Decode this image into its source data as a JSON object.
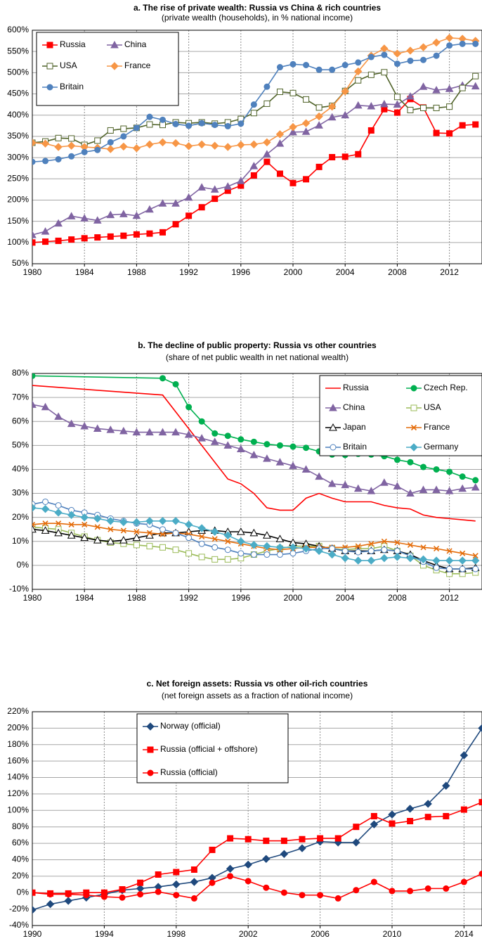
{
  "chart_data": [
    {
      "type": "line",
      "title": "a. The rise of private wealth: Russia vs China & rich countries",
      "subtitle": "(private wealth (households), in % national income)",
      "x": [
        1980,
        1981,
        1982,
        1983,
        1984,
        1985,
        1986,
        1987,
        1988,
        1989,
        1990,
        1991,
        1992,
        1993,
        1994,
        1995,
        1996,
        1997,
        1998,
        1999,
        2000,
        2001,
        2002,
        2003,
        2004,
        2005,
        2006,
        2007,
        2008,
        2009,
        2010,
        2011,
        2012,
        2013,
        2014
      ],
      "xlim": [
        1980,
        2014.5
      ],
      "xticks": [
        1980,
        1984,
        1988,
        1992,
        1996,
        2000,
        2004,
        2008,
        2012
      ],
      "ylim": [
        50,
        600
      ],
      "yticks": [
        {
          "value": 50,
          "label": "50%"
        },
        {
          "value": 100,
          "label": "100%"
        },
        {
          "value": 150,
          "label": "150%"
        },
        {
          "value": 200,
          "label": "200%"
        },
        {
          "value": 250,
          "label": "250%"
        },
        {
          "value": 300,
          "label": "300%"
        },
        {
          "value": 350,
          "label": "350%"
        },
        {
          "value": 400,
          "label": "400%"
        },
        {
          "value": 450,
          "label": "450%"
        },
        {
          "value": 500,
          "label": "500%"
        },
        {
          "value": 550,
          "label": "550%"
        },
        {
          "value": 600,
          "label": "600%"
        }
      ],
      "grid": true,
      "legend": "upper left",
      "legend_columns": 2,
      "series": [
        {
          "name": "Russia",
          "color": "#ff0000",
          "marker": "square",
          "values": [
            100,
            102,
            104,
            107,
            110,
            112,
            114,
            116,
            119,
            121,
            124,
            143,
            163,
            183,
            203,
            222,
            234,
            258,
            290,
            262,
            240,
            249,
            278,
            301,
            302,
            308,
            364,
            414,
            406,
            438,
            418,
            358,
            357,
            376,
            378
          ]
        },
        {
          "name": "China",
          "color": "#8064a2",
          "marker": "triangle",
          "values": [
            118,
            126,
            145,
            162,
            157,
            152,
            165,
            167,
            163,
            178,
            192,
            192,
            206,
            230,
            225,
            232,
            245,
            280,
            308,
            333,
            360,
            361,
            376,
            395,
            400,
            423,
            421,
            426,
            425,
            444,
            467,
            459,
            462,
            470,
            468
          ]
        },
        {
          "name": "USA",
          "color": "#4f6228",
          "marker": "square-open",
          "values": [
            335,
            338,
            346,
            345,
            330,
            340,
            364,
            368,
            370,
            378,
            377,
            383,
            381,
            383,
            380,
            383,
            391,
            405,
            427,
            455,
            452,
            437,
            418,
            422,
            457,
            482,
            495,
            501,
            443,
            412,
            417,
            417,
            420,
            464,
            492
          ]
        },
        {
          "name": "France",
          "color": "#f79646",
          "marker": "diamond",
          "values": [
            335,
            333,
            325,
            328,
            325,
            323,
            320,
            326,
            322,
            331,
            336,
            334,
            327,
            331,
            328,
            325,
            330,
            331,
            336,
            355,
            372,
            381,
            397,
            420,
            456,
            503,
            540,
            557,
            545,
            552,
            560,
            571,
            582,
            580,
            575
          ]
        },
        {
          "name": "Britain",
          "color": "#4f81bd",
          "marker": "circle",
          "values": [
            290,
            292,
            296,
            303,
            313,
            318,
            336,
            350,
            370,
            396,
            389,
            379,
            375,
            381,
            377,
            374,
            380,
            425,
            467,
            513,
            520,
            518,
            507,
            507,
            518,
            524,
            537,
            542,
            521,
            528,
            530,
            540,
            564,
            568,
            568
          ]
        }
      ]
    },
    {
      "type": "line",
      "title": "b. The decline of public property: Russia vs other countries",
      "subtitle": "(share of net public wealth in net national wealth)",
      "x": [
        1980,
        1981,
        1982,
        1983,
        1984,
        1985,
        1986,
        1987,
        1988,
        1989,
        1990,
        1991,
        1992,
        1993,
        1994,
        1995,
        1996,
        1997,
        1998,
        1999,
        2000,
        2001,
        2002,
        2003,
        2004,
        2005,
        2006,
        2007,
        2008,
        2009,
        2010,
        2011,
        2012,
        2013,
        2014
      ],
      "xlim": [
        1980,
        2014.5
      ],
      "xticks": [
        1980,
        1984,
        1988,
        1992,
        1996,
        2000,
        2004,
        2008,
        2012
      ],
      "ylim": [
        -10,
        80
      ],
      "yticks": [
        {
          "value": -10,
          "label": "-10%"
        },
        {
          "value": 0,
          "label": "0%"
        },
        {
          "value": 10,
          "label": "10%"
        },
        {
          "value": 20,
          "label": "20%"
        },
        {
          "value": 30,
          "label": "30%"
        },
        {
          "value": 40,
          "label": "40%"
        },
        {
          "value": 50,
          "label": "50%"
        },
        {
          "value": 60,
          "label": "60%"
        },
        {
          "value": 70,
          "label": "70%"
        },
        {
          "value": 80,
          "label": "80%"
        }
      ],
      "grid": true,
      "legend": "upper right",
      "legend_columns": 2,
      "series": [
        {
          "name": "Russia",
          "color": "#ff0000",
          "marker": "none",
          "x": [
            1980,
            1990,
            1995,
            1996,
            1997,
            1998,
            1999,
            2000,
            2001,
            2002,
            2003,
            2004,
            2005,
            2006,
            2007,
            2008,
            2009,
            2010,
            2011,
            2012,
            2013,
            2014
          ],
          "values": [
            75,
            71,
            36,
            34,
            30,
            24,
            23,
            23,
            28,
            30,
            28,
            26.5,
            26.5,
            26.5,
            25,
            24,
            23.5,
            21,
            20,
            19.5,
            19,
            18.5
          ]
        },
        {
          "name": "Czech Rep.",
          "color": "#00b050",
          "marker": "circle",
          "x": [
            1980,
            1990,
            1991,
            1992,
            1993,
            1994,
            1995,
            1996,
            1997,
            1998,
            1999,
            2000,
            2001,
            2002,
            2003,
            2004,
            2005,
            2006,
            2007,
            2008,
            2009,
            2010,
            2011,
            2012,
            2013,
            2014
          ],
          "values": [
            79,
            78,
            75.5,
            66,
            60,
            55,
            54,
            52.5,
            51.5,
            50.5,
            50,
            49.5,
            49,
            47.5,
            46.2,
            46,
            46.5,
            46.2,
            45.5,
            44,
            43,
            41,
            40,
            39,
            37,
            35.5
          ]
        },
        {
          "name": "China",
          "color": "#8064a2",
          "marker": "triangle",
          "values": [
            67,
            66,
            62,
            59,
            58,
            57,
            56.5,
            56,
            55.5,
            55.5,
            55.5,
            55.5,
            54.5,
            53,
            51.5,
            50,
            48.5,
            46,
            44.5,
            43,
            41.5,
            40,
            37,
            34,
            33.5,
            32,
            31,
            34.5,
            33,
            30,
            31.5,
            31.5,
            31,
            32,
            32.5
          ]
        },
        {
          "name": "USA",
          "color": "#9bbb59",
          "marker": "square-open",
          "values": [
            16,
            15.5,
            15,
            13.5,
            12,
            10.5,
            9.5,
            9,
            8.5,
            8,
            7.5,
            6.5,
            5,
            3.5,
            2.5,
            2.5,
            3,
            4.5,
            6,
            7,
            8,
            8,
            8,
            7,
            6.5,
            7,
            7,
            8,
            6,
            4,
            0,
            -2,
            -3.5,
            -3.5,
            -3
          ]
        },
        {
          "name": "Japan",
          "color": "#000000",
          "marker": "triangle-open",
          "values": [
            15,
            14.5,
            13.5,
            12.5,
            11.5,
            10.5,
            10,
            10.5,
            11.5,
            12.5,
            13.5,
            13.5,
            14,
            14.5,
            14.5,
            14,
            14,
            13.5,
            12.5,
            11,
            9.5,
            9,
            8,
            7,
            6,
            6,
            6,
            6.5,
            6,
            4.5,
            2,
            0,
            -1.5,
            -1.5,
            -1
          ]
        },
        {
          "name": "France",
          "color": "#e46c0a",
          "marker": "x",
          "values": [
            17,
            17.5,
            17.5,
            17,
            17,
            16,
            15,
            14.5,
            14,
            13.5,
            13,
            13.5,
            13,
            12,
            11,
            10,
            9,
            8,
            7,
            6.5,
            7,
            7.5,
            7.5,
            7.5,
            7.5,
            8,
            9,
            10,
            9.5,
            8.5,
            7.5,
            7,
            6,
            5,
            4
          ]
        },
        {
          "name": "Britain",
          "color": "#4f81bd",
          "marker": "circle-open",
          "values": [
            25.5,
            26.5,
            25,
            23,
            22,
            21,
            19.5,
            18.5,
            17.5,
            17,
            15,
            13.5,
            11.5,
            9,
            7.5,
            6.5,
            5,
            4.5,
            4.5,
            4.5,
            5,
            6,
            7,
            7,
            6,
            5.5,
            6,
            6.5,
            6,
            4,
            1.5,
            -1,
            -1.5,
            -1.5,
            -1.5
          ]
        },
        {
          "name": "Germany",
          "color": "#4bacc6",
          "marker": "diamond",
          "values": [
            24,
            23.5,
            22,
            21,
            20,
            19.5,
            18.5,
            18,
            18,
            18.5,
            18.5,
            18.5,
            17,
            15.5,
            14,
            12.5,
            10,
            8.5,
            8,
            7.5,
            7.5,
            7,
            6,
            4.5,
            3,
            2,
            2,
            3,
            3.5,
            3,
            2.5,
            2,
            2,
            2,
            2
          ]
        }
      ]
    },
    {
      "type": "line",
      "title": "c. Net foreign assets: Russia vs other oil-rich countries",
      "subtitle": "(net foreign assets as a fraction of national income)",
      "x": [
        1990,
        1991,
        1992,
        1993,
        1994,
        1995,
        1996,
        1997,
        1998,
        1999,
        2000,
        2001,
        2002,
        2003,
        2004,
        2005,
        2006,
        2007,
        2008,
        2009,
        2010,
        2011,
        2012,
        2013,
        2014,
        2015
      ],
      "xlim": [
        1990,
        2015
      ],
      "xticks": [
        1990,
        1994,
        1998,
        2002,
        2006,
        2010,
        2014
      ],
      "ylim": [
        -40,
        220
      ],
      "yticks": [
        {
          "value": -40,
          "label": "-40%"
        },
        {
          "value": -20,
          "label": "-20%"
        },
        {
          "value": 0,
          "label": "0%"
        },
        {
          "value": 20,
          "label": "20%"
        },
        {
          "value": 40,
          "label": "40%"
        },
        {
          "value": 60,
          "label": "60%"
        },
        {
          "value": 80,
          "label": "80%"
        },
        {
          "value": 100,
          "label": "100%"
        },
        {
          "value": 120,
          "label": "120%"
        },
        {
          "value": 140,
          "label": "140%"
        },
        {
          "value": 160,
          "label": "160%"
        },
        {
          "value": 180,
          "label": "180%"
        },
        {
          "value": 200,
          "label": "200%"
        },
        {
          "value": 220,
          "label": "220%"
        }
      ],
      "grid": true,
      "legend": "upper center",
      "legend_columns": 1,
      "series": [
        {
          "name": "Norway (official)",
          "color": "#1f497d",
          "marker": "diamond",
          "values": [
            -21,
            -14,
            -10,
            -6,
            -2,
            3,
            5,
            7,
            10,
            13,
            18,
            29,
            34,
            41,
            47,
            54,
            62,
            61,
            61,
            83,
            95,
            102,
            108,
            130,
            167,
            200
          ]
        },
        {
          "name": "Russia (official + offshore)",
          "color": "#ff0000",
          "marker": "square",
          "values": [
            0,
            -1,
            -1,
            0,
            0,
            4,
            12,
            22,
            25,
            28,
            52,
            66,
            65,
            63,
            63,
            65,
            66,
            66,
            80,
            93,
            84,
            87,
            92,
            93,
            101,
            110
          ]
        },
        {
          "name": "Russia (official)",
          "color": "#ff0000",
          "marker": "circle",
          "values": [
            0,
            -2,
            -2,
            -3,
            -5,
            -6,
            -2,
            1,
            -3,
            -7,
            12,
            20,
            14,
            6,
            0,
            -3,
            -3,
            -7,
            3,
            13,
            2,
            2,
            5,
            5,
            13,
            23
          ]
        }
      ]
    }
  ]
}
